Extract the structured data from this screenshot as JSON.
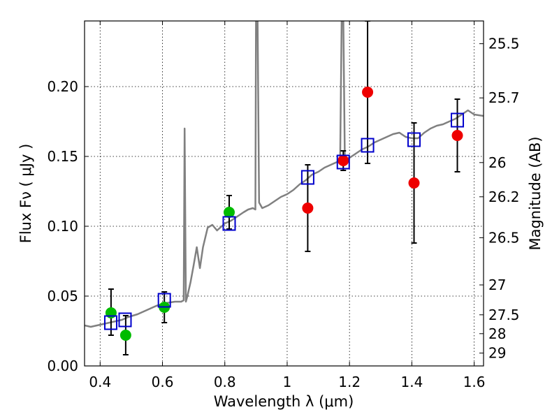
{
  "chart_data": {
    "type": "scatter",
    "title": "",
    "xlabel": "Wavelength  λ (μm)",
    "ylabel": "Flux  Fν  ( μJy )",
    "ylabel_right": "Magnitude (AB)",
    "xlim": [
      0.35,
      1.63
    ],
    "ylim": [
      0.0,
      0.247
    ],
    "grid": true,
    "x_ticks": [
      0.4,
      0.6,
      0.8,
      1.0,
      1.2,
      1.4,
      1.6
    ],
    "x_tick_labels": [
      "0.4",
      "0.6",
      "0.8",
      "1",
      "1.2",
      "1.4",
      "1.6"
    ],
    "y_ticks": [
      0.0,
      0.05,
      0.1,
      0.15,
      0.2
    ],
    "y_tick_labels": [
      "0.00",
      "0.05",
      "0.10",
      "0.15",
      "0.20"
    ],
    "right_ticks": [
      {
        "label": "25.5",
        "flux": 0.2307
      },
      {
        "label": "25.7",
        "flux": 0.1919
      },
      {
        "label": "26",
        "flux": 0.1456
      },
      {
        "label": "26.2",
        "flux": 0.1211
      },
      {
        "label": "26.5",
        "flux": 0.0918
      },
      {
        "label": "27",
        "flux": 0.058
      },
      {
        "label": "27.5",
        "flux": 0.0366
      },
      {
        "label": "28",
        "flux": 0.0231
      },
      {
        "label": "29",
        "flux": 0.0092
      }
    ],
    "colors": {
      "model": "#808080",
      "green": "#00bb00",
      "red": "#ee0000",
      "box": "#0000cc",
      "errorbar": "#000000"
    },
    "model_spectrum": [
      [
        0.35,
        0.029
      ],
      [
        0.37,
        0.028
      ],
      [
        0.39,
        0.029
      ],
      [
        0.41,
        0.03
      ],
      [
        0.43,
        0.031
      ],
      [
        0.45,
        0.032
      ],
      [
        0.47,
        0.033
      ],
      [
        0.49,
        0.035
      ],
      [
        0.52,
        0.037
      ],
      [
        0.55,
        0.04
      ],
      [
        0.58,
        0.043
      ],
      [
        0.61,
        0.045
      ],
      [
        0.64,
        0.046
      ],
      [
        0.66,
        0.046
      ],
      [
        0.668,
        0.047
      ],
      [
        0.671,
        0.17
      ],
      [
        0.675,
        0.046
      ],
      [
        0.68,
        0.05
      ],
      [
        0.69,
        0.06
      ],
      [
        0.7,
        0.072
      ],
      [
        0.71,
        0.085
      ],
      [
        0.72,
        0.07
      ],
      [
        0.73,
        0.085
      ],
      [
        0.745,
        0.099
      ],
      [
        0.76,
        0.101
      ],
      [
        0.775,
        0.097
      ],
      [
        0.79,
        0.1
      ],
      [
        0.8,
        0.102
      ],
      [
        0.82,
        0.104
      ],
      [
        0.84,
        0.107
      ],
      [
        0.86,
        0.11
      ],
      [
        0.875,
        0.112
      ],
      [
        0.89,
        0.113
      ],
      [
        0.898,
        0.112
      ],
      [
        0.9,
        0.25
      ],
      [
        0.905,
        0.25
      ],
      [
        0.91,
        0.117
      ],
      [
        0.92,
        0.113
      ],
      [
        0.94,
        0.115
      ],
      [
        0.96,
        0.118
      ],
      [
        0.98,
        0.121
      ],
      [
        1.0,
        0.123
      ],
      [
        1.02,
        0.126
      ],
      [
        1.04,
        0.13
      ],
      [
        1.06,
        0.133
      ],
      [
        1.08,
        0.137
      ],
      [
        1.1,
        0.139
      ],
      [
        1.12,
        0.142
      ],
      [
        1.14,
        0.144
      ],
      [
        1.16,
        0.146
      ],
      [
        1.17,
        0.147
      ],
      [
        1.175,
        0.25
      ],
      [
        1.18,
        0.25
      ],
      [
        1.185,
        0.148
      ],
      [
        1.2,
        0.149
      ],
      [
        1.22,
        0.152
      ],
      [
        1.24,
        0.155
      ],
      [
        1.26,
        0.157
      ],
      [
        1.28,
        0.16
      ],
      [
        1.3,
        0.162
      ],
      [
        1.32,
        0.164
      ],
      [
        1.34,
        0.166
      ],
      [
        1.36,
        0.167
      ],
      [
        1.38,
        0.164
      ],
      [
        1.4,
        0.163
      ],
      [
        1.42,
        0.163
      ],
      [
        1.44,
        0.167
      ],
      [
        1.46,
        0.17
      ],
      [
        1.48,
        0.172
      ],
      [
        1.5,
        0.173
      ],
      [
        1.52,
        0.175
      ],
      [
        1.54,
        0.177
      ],
      [
        1.56,
        0.18
      ],
      [
        1.58,
        0.183
      ],
      [
        1.6,
        0.18
      ],
      [
        1.63,
        0.179
      ]
    ],
    "series": [
      {
        "name": "green points",
        "marker": "circle",
        "points": [
          {
            "x": 0.435,
            "y": 0.038,
            "err_low": 0.016,
            "err_high": 0.017
          },
          {
            "x": 0.482,
            "y": 0.022,
            "err_low": 0.014,
            "err_high": 0.014
          },
          {
            "x": 0.606,
            "y": 0.042,
            "err_low": 0.011,
            "err_high": 0.011
          },
          {
            "x": 0.814,
            "y": 0.11,
            "err_low": 0.012,
            "err_high": 0.012
          }
        ]
      },
      {
        "name": "red points",
        "marker": "circle",
        "points": [
          {
            "x": 1.066,
            "y": 0.113,
            "err_low": 0.031,
            "err_high": 0.031
          },
          {
            "x": 1.18,
            "y": 0.147,
            "err_low": 0.007,
            "err_high": 0.007
          },
          {
            "x": 1.258,
            "y": 0.196,
            "err_low": 0.051,
            "err_high": 0.051
          },
          {
            "x": 1.407,
            "y": 0.131,
            "err_low": 0.043,
            "err_high": 0.043
          },
          {
            "x": 1.546,
            "y": 0.165,
            "err_low": 0.026,
            "err_high": 0.026
          }
        ]
      },
      {
        "name": "model boxes",
        "marker": "square",
        "points": [
          {
            "x": 0.434,
            "y": 0.031
          },
          {
            "x": 0.48,
            "y": 0.033
          },
          {
            "x": 0.606,
            "y": 0.047
          },
          {
            "x": 0.814,
            "y": 0.102
          },
          {
            "x": 1.066,
            "y": 0.135
          },
          {
            "x": 1.18,
            "y": 0.146
          },
          {
            "x": 1.258,
            "y": 0.158
          },
          {
            "x": 1.407,
            "y": 0.162
          },
          {
            "x": 1.546,
            "y": 0.176
          }
        ]
      }
    ]
  }
}
